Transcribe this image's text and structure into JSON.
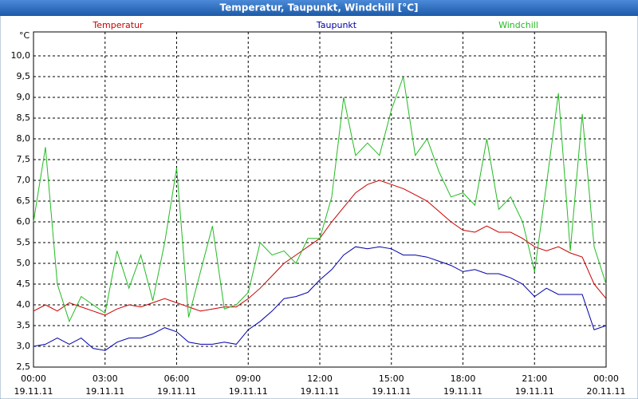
{
  "chart_data": {
    "type": "line",
    "title": "Temperatur, Taupunkt, Windchill [°C]",
    "y_unit": "°C",
    "x": [
      0,
      0.5,
      1,
      1.5,
      2,
      2.5,
      3,
      3.5,
      4,
      4.5,
      5,
      5.5,
      6,
      6.5,
      7,
      7.5,
      8,
      8.5,
      9,
      9.5,
      10,
      10.5,
      11,
      11.5,
      12,
      12.5,
      13,
      13.5,
      14,
      14.5,
      15,
      15.5,
      16,
      16.5,
      17,
      17.5,
      18,
      18.5,
      19,
      19.5,
      20,
      20.5,
      21,
      21.5,
      22,
      22.5,
      23,
      23.5,
      24
    ],
    "series": [
      {
        "name": "Temperatur",
        "color": "#cc0000",
        "values": [
          3.85,
          4.0,
          3.85,
          4.05,
          3.95,
          3.85,
          3.75,
          3.9,
          4.0,
          3.95,
          4.05,
          4.15,
          4.05,
          3.95,
          3.85,
          3.9,
          3.95,
          3.95,
          4.15,
          4.4,
          4.7,
          5.0,
          5.2,
          5.4,
          5.6,
          6.0,
          6.35,
          6.7,
          6.9,
          7.0,
          6.9,
          6.8,
          6.65,
          6.5,
          6.25,
          6.0,
          5.8,
          5.75,
          5.9,
          5.75,
          5.75,
          5.6,
          5.4,
          5.3,
          5.4,
          5.25,
          5.15,
          4.5,
          4.15
        ]
      },
      {
        "name": "Taupunkt",
        "color": "#0000aa",
        "values": [
          3.0,
          3.05,
          3.2,
          3.05,
          3.2,
          2.95,
          2.9,
          3.1,
          3.2,
          3.2,
          3.3,
          3.45,
          3.35,
          3.1,
          3.05,
          3.05,
          3.1,
          3.05,
          3.4,
          3.6,
          3.85,
          4.15,
          4.2,
          4.3,
          4.6,
          4.85,
          5.2,
          5.4,
          5.35,
          5.4,
          5.35,
          5.2,
          5.2,
          5.15,
          5.05,
          4.95,
          4.8,
          4.85,
          4.75,
          4.75,
          4.65,
          4.5,
          4.2,
          4.4,
          4.25,
          4.25,
          4.25,
          3.4,
          3.5
        ]
      },
      {
        "name": "Windchill",
        "color": "#22bb22",
        "values": [
          6.0,
          7.8,
          4.5,
          3.6,
          4.2,
          4.0,
          3.8,
          5.3,
          4.4,
          5.2,
          4.1,
          5.5,
          7.3,
          3.7,
          4.8,
          5.9,
          3.9,
          4.0,
          4.3,
          5.5,
          5.2,
          5.3,
          5.0,
          5.6,
          5.6,
          6.6,
          9.0,
          7.6,
          7.9,
          7.6,
          8.7,
          9.5,
          7.6,
          8.0,
          7.2,
          6.6,
          6.7,
          6.4,
          8.0,
          6.3,
          6.6,
          6.0,
          4.8,
          6.9,
          9.1,
          5.3,
          8.6,
          5.4,
          4.5
        ]
      }
    ],
    "xlim": [
      0,
      24
    ],
    "xticks": [
      {
        "value": 0,
        "label": "00:00"
      },
      {
        "value": 3,
        "label": "03:00"
      },
      {
        "value": 6,
        "label": "06:00"
      },
      {
        "value": 9,
        "label": "09:00"
      },
      {
        "value": 12,
        "label": "12:00"
      },
      {
        "value": 15,
        "label": "15:00"
      },
      {
        "value": 18,
        "label": "18:00"
      },
      {
        "value": 21,
        "label": "21:00"
      },
      {
        "value": 24,
        "label": "00:00"
      }
    ],
    "xtick_dates": [
      "19.11.11",
      "19.11.11",
      "19.11.11",
      "19.11.11",
      "19.11.11",
      "19.11.11",
      "19.11.11",
      "19.11.11",
      "20.11.11"
    ],
    "ylim": [
      2.5,
      10.5
    ],
    "yticks": [
      {
        "value": 2.5,
        "label": "2,5"
      },
      {
        "value": 3,
        "label": "3,0"
      },
      {
        "value": 3.5,
        "label": "3,5"
      },
      {
        "value": 4,
        "label": "4,0"
      },
      {
        "value": 4.5,
        "label": "4,5"
      },
      {
        "value": 5,
        "label": "5,0"
      },
      {
        "value": 5.5,
        "label": "5,5"
      },
      {
        "value": 6,
        "label": "6,0"
      },
      {
        "value": 6.5,
        "label": "6,5"
      },
      {
        "value": 7,
        "label": "7,0"
      },
      {
        "value": 7.5,
        "label": "7,5"
      },
      {
        "value": 8,
        "label": "8,0"
      },
      {
        "value": 8.5,
        "label": "8,5"
      },
      {
        "value": 9,
        "label": "9,0"
      },
      {
        "value": 9.5,
        "label": "9,5"
      },
      {
        "value": 10,
        "label": "10,0"
      }
    ],
    "grid": true
  }
}
